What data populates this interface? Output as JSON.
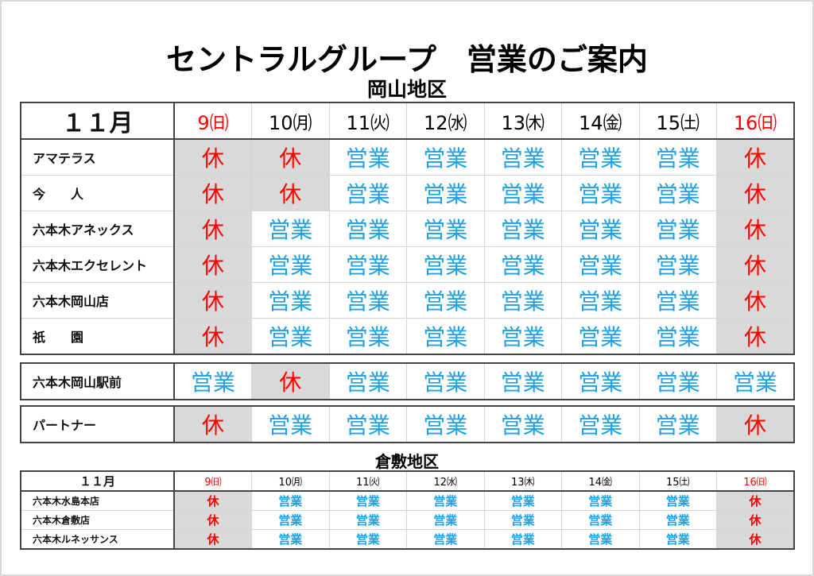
{
  "title": "セントラルグループ　営業のご案内",
  "colors": {
    "closed_text": "#ff0000",
    "open_text": "#1ea0e6",
    "closed_bg": "#d9d9d9",
    "sunday": "#ff0000"
  },
  "okayama": {
    "region": "岡山地区",
    "month": "１１月",
    "days": [
      {
        "label": "9㈰",
        "holiday": true
      },
      {
        "label": "10㈪",
        "holiday": false
      },
      {
        "label": "11㈫",
        "holiday": false
      },
      {
        "label": "12㈬",
        "holiday": false
      },
      {
        "label": "13㈭",
        "holiday": false
      },
      {
        "label": "14㈮",
        "holiday": false
      },
      {
        "label": "15㈯",
        "holiday": false
      },
      {
        "label": "16㈰",
        "holiday": true
      }
    ],
    "groups": [
      [
        {
          "name": "アマテラス",
          "status": [
            "休",
            "休",
            "営業",
            "営業",
            "営業",
            "営業",
            "営業",
            "休"
          ]
        },
        {
          "name": "今　　人",
          "status": [
            "休",
            "休",
            "営業",
            "営業",
            "営業",
            "営業",
            "営業",
            "休"
          ]
        },
        {
          "name": "六本木アネックス",
          "status": [
            "休",
            "営業",
            "営業",
            "営業",
            "営業",
            "営業",
            "営業",
            "休"
          ]
        },
        {
          "name": "六本木エクセレント",
          "status": [
            "休",
            "営業",
            "営業",
            "営業",
            "営業",
            "営業",
            "営業",
            "休"
          ]
        },
        {
          "name": "六本木岡山店",
          "status": [
            "休",
            "営業",
            "営業",
            "営業",
            "営業",
            "営業",
            "営業",
            "休"
          ]
        },
        {
          "name": "祇　　園",
          "status": [
            "休",
            "営業",
            "営業",
            "営業",
            "営業",
            "営業",
            "営業",
            "休"
          ]
        }
      ],
      [
        {
          "name": "六本木岡山駅前",
          "status": [
            "営業",
            "休",
            "営業",
            "営業",
            "営業",
            "営業",
            "営業",
            "営業"
          ]
        }
      ],
      [
        {
          "name": "パートナー",
          "status": [
            "休",
            "営業",
            "営業",
            "営業",
            "営業",
            "営業",
            "営業",
            "休"
          ]
        }
      ]
    ]
  },
  "kurashiki": {
    "region": "倉敷地区",
    "month": "１１月",
    "days": [
      {
        "label": "9㈰",
        "holiday": true
      },
      {
        "label": "10㈪",
        "holiday": false
      },
      {
        "label": "11㈫",
        "holiday": false
      },
      {
        "label": "12㈬",
        "holiday": false
      },
      {
        "label": "13㈭",
        "holiday": false
      },
      {
        "label": "14㈮",
        "holiday": false
      },
      {
        "label": "15㈯",
        "holiday": false
      },
      {
        "label": "16㈰",
        "holiday": true
      }
    ],
    "rows": [
      {
        "name": "六本木水島本店",
        "status": [
          "休",
          "営業",
          "営業",
          "営業",
          "営業",
          "営業",
          "営業",
          "休"
        ]
      },
      {
        "name": "六本木倉敷店",
        "status": [
          "休",
          "営業",
          "営業",
          "営業",
          "営業",
          "営業",
          "営業",
          "休"
        ]
      },
      {
        "name": "六本木ルネッサンス",
        "status": [
          "休",
          "営業",
          "営業",
          "営業",
          "営業",
          "営業",
          "営業",
          "休"
        ]
      }
    ]
  }
}
